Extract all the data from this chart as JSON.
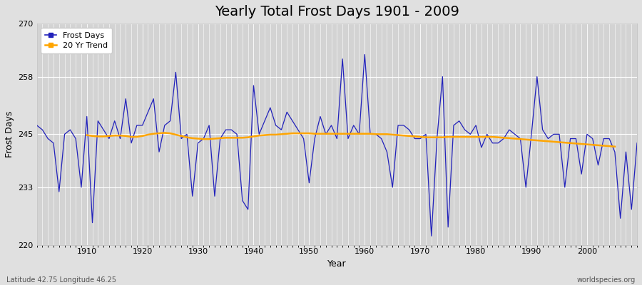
{
  "title": "Yearly Total Frost Days 1901 - 2009",
  "xlabel": "Year",
  "ylabel": "Frost Days",
  "subtitle": "Latitude 42.75 Longitude 46.25",
  "watermark": "worldspecies.org",
  "ylim": [
    220,
    270
  ],
  "yticks": [
    220,
    233,
    245,
    258,
    270
  ],
  "xlim": [
    1901,
    2009
  ],
  "xticks": [
    1910,
    1920,
    1930,
    1940,
    1950,
    1960,
    1970,
    1980,
    1990,
    2000
  ],
  "years": [
    1901,
    1902,
    1903,
    1904,
    1905,
    1906,
    1907,
    1908,
    1909,
    1910,
    1911,
    1912,
    1913,
    1914,
    1915,
    1916,
    1917,
    1918,
    1919,
    1920,
    1921,
    1922,
    1923,
    1924,
    1925,
    1926,
    1927,
    1928,
    1929,
    1930,
    1931,
    1932,
    1933,
    1934,
    1935,
    1936,
    1937,
    1938,
    1939,
    1940,
    1941,
    1942,
    1943,
    1944,
    1945,
    1946,
    1947,
    1948,
    1949,
    1950,
    1951,
    1952,
    1953,
    1954,
    1955,
    1956,
    1957,
    1958,
    1959,
    1960,
    1961,
    1962,
    1963,
    1964,
    1965,
    1966,
    1967,
    1968,
    1969,
    1970,
    1971,
    1972,
    1973,
    1974,
    1975,
    1976,
    1977,
    1978,
    1979,
    1980,
    1981,
    1982,
    1983,
    1984,
    1985,
    1986,
    1987,
    1988,
    1989,
    1990,
    1991,
    1992,
    1993,
    1994,
    1995,
    1996,
    1997,
    1998,
    1999,
    2000,
    2001,
    2002,
    2003,
    2004,
    2005,
    2006,
    2007,
    2008,
    2009
  ],
  "frost_days": [
    247,
    246,
    244,
    243,
    232,
    245,
    246,
    244,
    233,
    249,
    225,
    248,
    246,
    244,
    248,
    244,
    253,
    243,
    247,
    247,
    250,
    253,
    241,
    247,
    248,
    259,
    244,
    245,
    231,
    243,
    244,
    247,
    231,
    244,
    246,
    246,
    245,
    230,
    228,
    256,
    245,
    248,
    251,
    247,
    246,
    250,
    248,
    246,
    244,
    234,
    244,
    249,
    245,
    247,
    244,
    262,
    244,
    247,
    245,
    263,
    245,
    245,
    244,
    241,
    233,
    247,
    247,
    246,
    244,
    244,
    245,
    222,
    244,
    258,
    224,
    247,
    248,
    246,
    245,
    247,
    242,
    245,
    243,
    243,
    244,
    246,
    245,
    244,
    233,
    245,
    258,
    246,
    244,
    245,
    245,
    233,
    244,
    244,
    236,
    245,
    244,
    238,
    244,
    244,
    241,
    226,
    241,
    228,
    243
  ],
  "trend_years": [
    1910,
    1911,
    1912,
    1913,
    1914,
    1915,
    1916,
    1917,
    1918,
    1919,
    1920,
    1921,
    1922,
    1923,
    1924,
    1925,
    1926,
    1927,
    1928,
    1929,
    1930,
    1931,
    1932,
    1933,
    1934,
    1935,
    1936,
    1937,
    1938,
    1939,
    1940,
    1941,
    1942,
    1943,
    1944,
    1945,
    1946,
    1947,
    1948,
    1949,
    1950,
    1951,
    1952,
    1953,
    1954,
    1955,
    1956,
    1957,
    1958,
    1959,
    1960,
    1961,
    1962,
    1963,
    1964,
    1965,
    1966,
    1967,
    1968,
    1969,
    1970,
    1971,
    1972,
    1973,
    1974,
    1975,
    1976,
    1977,
    1978,
    1979,
    1980,
    1981,
    1982,
    1983,
    1984,
    1985,
    1986,
    1987,
    1988,
    1989,
    1990,
    1991,
    1992,
    1993,
    1994,
    1995,
    1996,
    1997,
    1998,
    1999,
    2000,
    2001,
    2002,
    2003,
    2004,
    2005
  ],
  "trend_values": [
    244.8,
    244.6,
    244.5,
    244.5,
    244.6,
    244.7,
    244.7,
    244.6,
    244.4,
    244.4,
    244.6,
    244.9,
    245.1,
    245.2,
    245.3,
    245.2,
    244.9,
    244.6,
    244.3,
    244.1,
    244.0,
    243.9,
    243.9,
    244.0,
    244.1,
    244.2,
    244.2,
    244.2,
    244.2,
    244.3,
    244.5,
    244.7,
    244.8,
    244.9,
    244.9,
    245.0,
    245.1,
    245.2,
    245.2,
    245.2,
    245.2,
    245.1,
    245.1,
    245.1,
    245.1,
    245.1,
    245.1,
    245.1,
    245.1,
    245.1,
    245.1,
    245.1,
    245.0,
    245.0,
    245.0,
    244.9,
    244.8,
    244.7,
    244.6,
    244.5,
    244.4,
    244.3,
    244.3,
    244.3,
    244.3,
    244.4,
    244.4,
    244.4,
    244.4,
    244.4,
    244.4,
    244.4,
    244.4,
    244.4,
    244.3,
    244.2,
    244.1,
    244.0,
    243.9,
    243.8,
    243.7,
    243.6,
    243.5,
    243.4,
    243.3,
    243.2,
    243.1,
    243.0,
    242.9,
    242.8,
    242.7,
    242.6,
    242.5,
    242.4,
    242.3,
    242.2
  ],
  "line_color": "#2222bb",
  "trend_color": "#ffa500",
  "fig_bg_color": "#e0e0e0",
  "plot_bg_color": "#d3d3d3",
  "grid_color": "#ffffff",
  "title_fontsize": 14,
  "label_fontsize": 9,
  "tick_fontsize": 8,
  "legend_fontsize": 8
}
